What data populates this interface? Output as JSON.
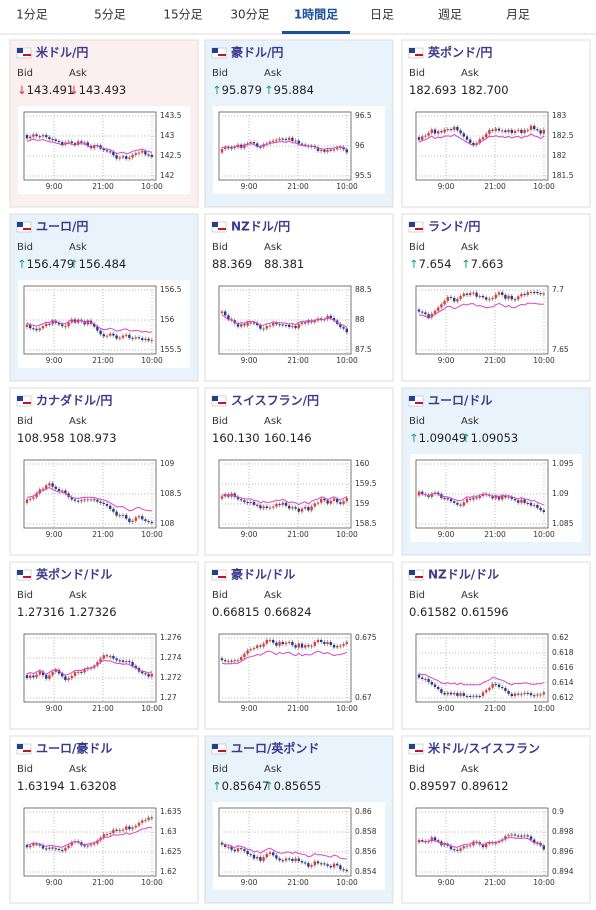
{
  "tabs": [
    "1分足",
    "5分足",
    "15分足",
    "30分足",
    "1時間足",
    "日足",
    "週足",
    "月足"
  ],
  "cards": [
    {
      "pair": "米ドル/円",
      "background": "#fcefef",
      "bid_label": "Bid",
      "ask_label": "Ask",
      "bid_trend": "↓",
      "bid": "143.491",
      "ask_trend": "↓",
      "ask": "143.493",
      "yticks": [
        143.5,
        143,
        142.5,
        142
      ],
      "xticks": [
        "9:00",
        "21:00",
        "10:00"
      ]
    },
    {
      "pair": "豪ドル/円",
      "background": "#e9f3fb",
      "bid_label": "Bid",
      "ask_label": "Ask",
      "bid_trend": "↑",
      "bid": "95.879",
      "ask_trend": "↑",
      "ask": "95.884",
      "yticks": [
        96.5,
        96,
        95.5
      ],
      "xticks": [
        "9:00",
        "21:00",
        "10:00"
      ]
    },
    {
      "pair": "英ポンド/円",
      "background": "#ffffff",
      "bid_label": "Bid",
      "ask_label": "Ask",
      "bid": "182.693",
      "ask": "182.700",
      "yticks": [
        183,
        182.5,
        182,
        181.5
      ],
      "xticks": [
        "9:00",
        "21:00",
        "10:00"
      ]
    },
    {
      "pair": "ユーロ/円",
      "background": "#e9f3fb",
      "bid_label": "Bid",
      "ask_label": "Ask",
      "bid_trend": "↑",
      "bid": "156.479",
      "ask_trend": "↑",
      "ask": "156.484",
      "yticks": [
        156.5,
        156,
        155.5
      ],
      "xticks": [
        "9:00",
        "21:00",
        "10:00"
      ]
    },
    {
      "pair": "NZドル/円",
      "background": "#ffffff",
      "bid_label": "Bid",
      "ask_label": "Ask",
      "bid": "88.369",
      "ask": "88.381",
      "yticks": [
        88.5,
        88,
        87.5
      ],
      "xticks": [
        "9:00",
        "21:00",
        "10:00"
      ]
    },
    {
      "pair": "ランド/円",
      "background": "#ffffff",
      "bid_label": "Bid",
      "ask_label": "Ask",
      "bid_trend": "↑",
      "bid": "7.654",
      "ask_trend": "↑",
      "ask": "7.663",
      "yticks": [
        7.7,
        7.65
      ],
      "xticks": [
        "9:00",
        "21:00",
        "10:00"
      ]
    },
    {
      "pair": "カナダドル/円",
      "background": "#ffffff",
      "bid_label": "Bid",
      "ask_label": "Ask",
      "bid": "108.958",
      "ask": "108.973",
      "yticks": [
        109,
        108.5,
        108
      ],
      "xticks": [
        "9:00",
        "21:00",
        "10:00"
      ]
    },
    {
      "pair": "スイスフラン/円",
      "background": "#ffffff",
      "bid_label": "Bid",
      "ask_label": "Ask",
      "bid": "160.130",
      "ask": "160.146",
      "yticks": [
        160,
        159.5,
        159,
        158.5
      ],
      "xticks": [
        "9:00",
        "21:00",
        "10:00"
      ]
    },
    {
      "pair": "ユーロ/ドル",
      "background": "#e9f3fb",
      "bid_label": "Bid",
      "ask_label": "Ask",
      "bid_trend": "↑",
      "bid": "1.09049",
      "ask_trend": "↑",
      "ask": "1.09053",
      "yticks": [
        1.095,
        1.09,
        1.085
      ],
      "xticks": [
        "9:00",
        "21:00",
        "10:00"
      ]
    },
    {
      "pair": "英ポンド/ドル",
      "background": "#ffffff",
      "bid_label": "Bid",
      "ask_label": "Ask",
      "bid": "1.27316",
      "ask": "1.27326",
      "yticks": [
        1.276,
        1.274,
        1.272,
        1.27
      ],
      "xticks": [
        "9:00",
        "21:00",
        "10:00"
      ]
    },
    {
      "pair": "豪ドル/ドル",
      "background": "#ffffff",
      "bid_label": "Bid",
      "ask_label": "Ask",
      "bid": "0.66815",
      "ask": "0.66824",
      "yticks": [
        0.675,
        0.67
      ],
      "xticks": [
        "9:00",
        "21:00",
        "10:00"
      ]
    },
    {
      "pair": "NZドル/ドル",
      "background": "#ffffff",
      "bid_label": "Bid",
      "ask_label": "Ask",
      "bid": "0.61582",
      "ask": "0.61596",
      "yticks": [
        0.62,
        0.618,
        0.616,
        0.614,
        0.612
      ],
      "xticks": [
        "9:00",
        "21:00",
        "10:00"
      ]
    },
    {
      "pair": "ユーロ/豪ドル",
      "background": "#ffffff",
      "bid_label": "Bid",
      "ask_label": "Ask",
      "bid": "1.63194",
      "ask": "1.63208",
      "yticks": [
        1.635,
        1.63,
        1.625,
        1.62
      ],
      "xticks": [
        "9:00",
        "21:00",
        "10:00"
      ]
    },
    {
      "pair": "ユーロ/英ポンド",
      "background": "#e9f3fb",
      "bid_label": "Bid",
      "ask_label": "Ask",
      "bid_trend": "↑",
      "bid": "0.85647",
      "ask_trend": "↑",
      "ask": "0.85655",
      "yticks": [
        0.86,
        0.858,
        0.856,
        0.854
      ],
      "xticks": [
        "9:00",
        "21:00",
        "10:00"
      ]
    },
    {
      "pair": "米ドル/スイスフラン",
      "background": "#ffffff",
      "bid_label": "Bid",
      "ask_label": "Ask",
      "bid": "0.89597",
      "ask": "0.89612",
      "yticks": [
        0.9,
        0.898,
        0.896,
        0.894
      ],
      "xticks": [
        "9:00",
        "21:00",
        "10:00"
      ]
    }
  ]
}
